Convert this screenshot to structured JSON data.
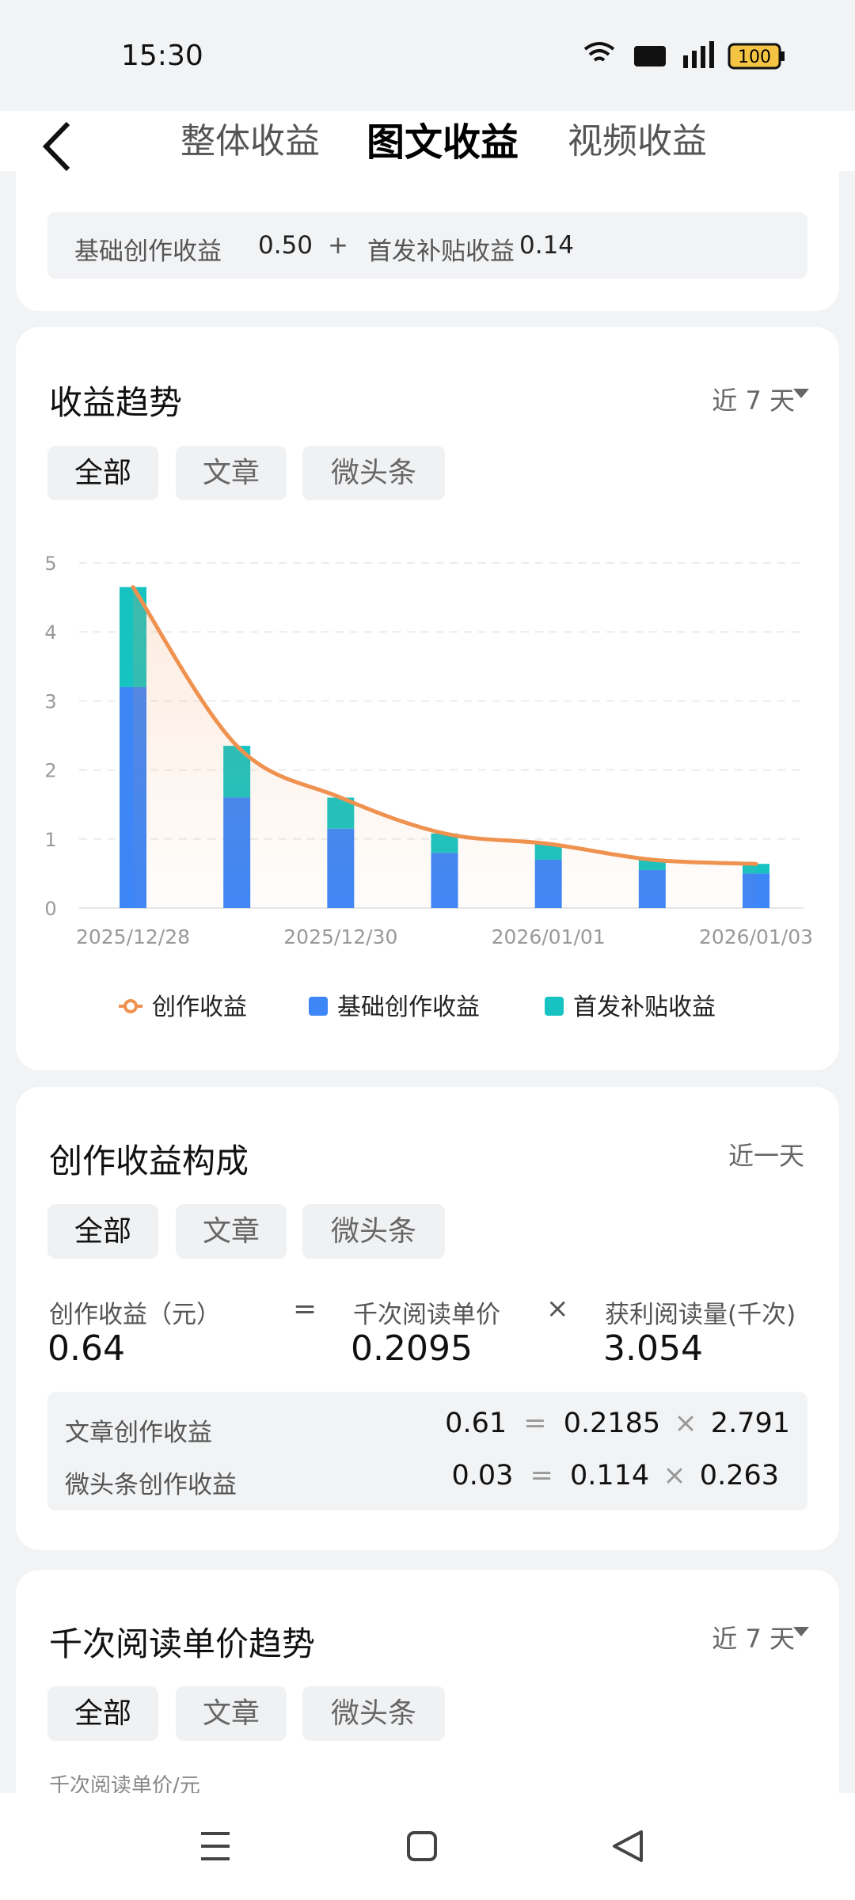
{
  "status_bar": {
    "time": "15:30",
    "battery": "100"
  },
  "tabs": [
    "整体收益",
    "图文收益",
    "视频收益"
  ],
  "summary": {
    "operator": "+",
    "items": [
      {
        "label": "基础创作收益",
        "value": "0.50"
      },
      {
        "label": "首发补贴收益",
        "value": "0.14"
      }
    ]
  },
  "trend_card": {
    "title": "收益趋势",
    "range": "近 7 天",
    "filters": [
      "全部",
      "文章",
      "微头条"
    ]
  },
  "chart_data": {
    "type": "bar",
    "stacked": true,
    "categories": [
      "2025/12/28",
      null,
      "2025/12/30",
      null,
      "2026/01/01",
      null,
      "2026/01/03"
    ],
    "series": [
      {
        "name": "创作收益",
        "type": "line",
        "color": "#f0924f",
        "values": [
          4.65,
          2.35,
          1.6,
          1.08,
          0.93,
          0.7,
          0.64
        ]
      },
      {
        "name": "基础创作收益",
        "type": "bar",
        "color": "#3d86f7",
        "values": [
          3.2,
          1.6,
          1.15,
          0.8,
          0.7,
          0.55,
          0.5
        ]
      },
      {
        "name": "首发补贴收益",
        "type": "bar",
        "color": "#17c3c1",
        "values": [
          1.45,
          0.75,
          0.45,
          0.28,
          0.23,
          0.15,
          0.14
        ]
      }
    ],
    "ylim": [
      0,
      5
    ],
    "yticks": [
      0,
      1,
      2,
      3,
      4,
      5
    ],
    "grid": true,
    "legend": "bottom"
  },
  "composition_card": {
    "title": "创作收益构成",
    "range": "近一天",
    "filters": [
      "全部",
      "文章",
      "微头条"
    ],
    "equals": "=",
    "times": "×",
    "terms": [
      {
        "label": "创作收益（元）",
        "value": "0.64"
      },
      {
        "label": "千次阅读单价",
        "value": "0.2095"
      },
      {
        "label": "获利阅读量(千次)",
        "value": "3.054"
      }
    ],
    "rows": [
      {
        "label": "文章创作收益",
        "total": "0.61",
        "price": "0.2185",
        "reads": "2.791"
      },
      {
        "label": "微头条创作收益",
        "total": "0.03",
        "price": "0.114",
        "reads": "0.263"
      }
    ]
  },
  "price_card": {
    "title": "千次阅读单价趋势",
    "range": "近 7 天",
    "filters": [
      "全部",
      "文章",
      "微头条"
    ],
    "axis_label": "千次阅读单价/元"
  }
}
